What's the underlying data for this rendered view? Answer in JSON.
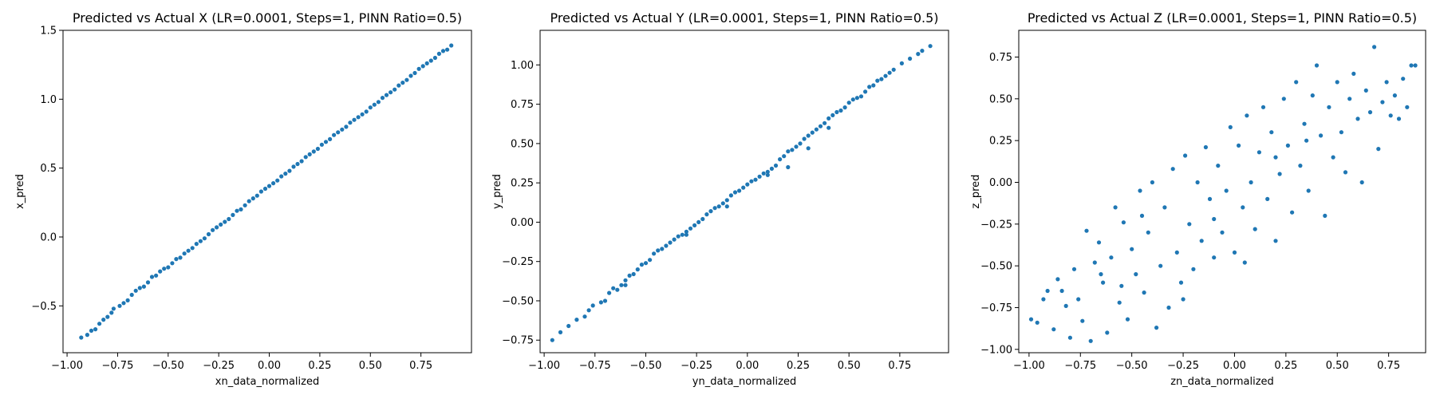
{
  "colors": {
    "points": "#1f77b4",
    "axes": "#000000",
    "background": "#ffffff"
  },
  "chart_data": [
    {
      "type": "scatter",
      "title": "Predicted vs Actual X (LR=0.0001, Steps=1, PINN Ratio=0.5)",
      "xlabel": "xn_data_normalized",
      "ylabel": "x_pred",
      "xlim": [
        -1.02,
        1.0
      ],
      "ylim": [
        -0.84,
        1.5
      ],
      "xticks": [
        -1.0,
        -0.75,
        -0.5,
        -0.25,
        0.0,
        0.25,
        0.5,
        0.75
      ],
      "xtick_labels": [
        "−1.00",
        "−0.75",
        "−0.50",
        "−0.25",
        "0.00",
        "0.25",
        "0.50",
        "0.75"
      ],
      "yticks": [
        -0.5,
        0.0,
        0.5,
        1.0,
        1.5
      ],
      "ytick_labels": [
        "−0.5",
        "0.0",
        "0.5",
        "1.0",
        "1.5"
      ],
      "points": [
        [
          -0.93,
          -0.73
        ],
        [
          -0.9,
          -0.71
        ],
        [
          -0.88,
          -0.68
        ],
        [
          -0.86,
          -0.67
        ],
        [
          -0.84,
          -0.63
        ],
        [
          -0.82,
          -0.6
        ],
        [
          -0.8,
          -0.58
        ],
        [
          -0.78,
          -0.55
        ],
        [
          -0.77,
          -0.52
        ],
        [
          -0.74,
          -0.5
        ],
        [
          -0.72,
          -0.48
        ],
        [
          -0.7,
          -0.46
        ],
        [
          -0.68,
          -0.42
        ],
        [
          -0.66,
          -0.39
        ],
        [
          -0.64,
          -0.37
        ],
        [
          -0.62,
          -0.36
        ],
        [
          -0.6,
          -0.33
        ],
        [
          -0.58,
          -0.29
        ],
        [
          -0.56,
          -0.28
        ],
        [
          -0.54,
          -0.25
        ],
        [
          -0.52,
          -0.23
        ],
        [
          -0.5,
          -0.22
        ],
        [
          -0.48,
          -0.19
        ],
        [
          -0.46,
          -0.16
        ],
        [
          -0.44,
          -0.15
        ],
        [
          -0.42,
          -0.12
        ],
        [
          -0.4,
          -0.1
        ],
        [
          -0.38,
          -0.08
        ],
        [
          -0.36,
          -0.05
        ],
        [
          -0.34,
          -0.03
        ],
        [
          -0.32,
          -0.01
        ],
        [
          -0.3,
          0.02
        ],
        [
          -0.28,
          0.05
        ],
        [
          -0.26,
          0.07
        ],
        [
          -0.24,
          0.09
        ],
        [
          -0.22,
          0.11
        ],
        [
          -0.2,
          0.13
        ],
        [
          -0.18,
          0.16
        ],
        [
          -0.16,
          0.19
        ],
        [
          -0.14,
          0.2
        ],
        [
          -0.12,
          0.23
        ],
        [
          -0.1,
          0.26
        ],
        [
          -0.08,
          0.28
        ],
        [
          -0.06,
          0.3
        ],
        [
          -0.04,
          0.33
        ],
        [
          -0.02,
          0.35
        ],
        [
          0.0,
          0.37
        ],
        [
          0.02,
          0.39
        ],
        [
          0.04,
          0.41
        ],
        [
          0.06,
          0.44
        ],
        [
          0.08,
          0.46
        ],
        [
          0.1,
          0.48
        ],
        [
          0.12,
          0.51
        ],
        [
          0.14,
          0.53
        ],
        [
          0.16,
          0.55
        ],
        [
          0.18,
          0.58
        ],
        [
          0.2,
          0.6
        ],
        [
          0.22,
          0.62
        ],
        [
          0.24,
          0.64
        ],
        [
          0.26,
          0.67
        ],
        [
          0.28,
          0.69
        ],
        [
          0.3,
          0.71
        ],
        [
          0.32,
          0.74
        ],
        [
          0.34,
          0.76
        ],
        [
          0.36,
          0.78
        ],
        [
          0.38,
          0.8
        ],
        [
          0.4,
          0.83
        ],
        [
          0.42,
          0.85
        ],
        [
          0.44,
          0.87
        ],
        [
          0.46,
          0.89
        ],
        [
          0.48,
          0.91
        ],
        [
          0.5,
          0.94
        ],
        [
          0.52,
          0.96
        ],
        [
          0.54,
          0.98
        ],
        [
          0.56,
          1.01
        ],
        [
          0.58,
          1.03
        ],
        [
          0.6,
          1.05
        ],
        [
          0.62,
          1.07
        ],
        [
          0.64,
          1.1
        ],
        [
          0.66,
          1.12
        ],
        [
          0.68,
          1.14
        ],
        [
          0.7,
          1.17
        ],
        [
          0.72,
          1.19
        ],
        [
          0.74,
          1.22
        ],
        [
          0.76,
          1.24
        ],
        [
          0.78,
          1.26
        ],
        [
          0.8,
          1.28
        ],
        [
          0.82,
          1.3
        ],
        [
          0.84,
          1.33
        ],
        [
          0.86,
          1.35
        ],
        [
          0.88,
          1.36
        ],
        [
          0.9,
          1.39
        ]
      ]
    },
    {
      "type": "scatter",
      "title": "Predicted vs Actual Y (LR=0.0001, Steps=1, PINN Ratio=0.5)",
      "xlabel": "yn_data_normalized",
      "ylabel": "y_pred",
      "xlim": [
        -1.02,
        0.99
      ],
      "ylim": [
        -0.83,
        1.22
      ],
      "xticks": [
        -1.0,
        -0.75,
        -0.5,
        -0.25,
        0.0,
        0.25,
        0.5,
        0.75
      ],
      "xtick_labels": [
        "−1.00",
        "−0.75",
        "−0.50",
        "−0.25",
        "0.00",
        "0.25",
        "0.50",
        "0.75"
      ],
      "yticks": [
        -0.75,
        -0.5,
        -0.25,
        0.0,
        0.25,
        0.5,
        0.75,
        1.0
      ],
      "ytick_labels": [
        "−0.75",
        "−0.50",
        "−0.25",
        "0.00",
        "0.25",
        "0.50",
        "0.75",
        "1.00"
      ],
      "points": [
        [
          -0.96,
          -0.75
        ],
        [
          -0.92,
          -0.7
        ],
        [
          -0.88,
          -0.66
        ],
        [
          -0.84,
          -0.62
        ],
        [
          -0.8,
          -0.6
        ],
        [
          -0.78,
          -0.56
        ],
        [
          -0.76,
          -0.53
        ],
        [
          -0.72,
          -0.51
        ],
        [
          -0.7,
          -0.5
        ],
        [
          -0.68,
          -0.45
        ],
        [
          -0.66,
          -0.42
        ],
        [
          -0.64,
          -0.43
        ],
        [
          -0.62,
          -0.4
        ],
        [
          -0.6,
          -0.37
        ],
        [
          -0.58,
          -0.34
        ],
        [
          -0.56,
          -0.33
        ],
        [
          -0.54,
          -0.3
        ],
        [
          -0.52,
          -0.27
        ],
        [
          -0.5,
          -0.26
        ],
        [
          -0.48,
          -0.24
        ],
        [
          -0.46,
          -0.2
        ],
        [
          -0.44,
          -0.18
        ],
        [
          -0.42,
          -0.17
        ],
        [
          -0.4,
          -0.15
        ],
        [
          -0.38,
          -0.13
        ],
        [
          -0.36,
          -0.11
        ],
        [
          -0.34,
          -0.09
        ],
        [
          -0.32,
          -0.08
        ],
        [
          -0.3,
          -0.06
        ],
        [
          -0.28,
          -0.04
        ],
        [
          -0.26,
          -0.02
        ],
        [
          -0.24,
          0.0
        ],
        [
          -0.22,
          0.02
        ],
        [
          -0.2,
          0.05
        ],
        [
          -0.18,
          0.07
        ],
        [
          -0.16,
          0.09
        ],
        [
          -0.14,
          0.1
        ],
        [
          -0.12,
          0.12
        ],
        [
          -0.1,
          0.14
        ],
        [
          -0.08,
          0.17
        ],
        [
          -0.06,
          0.19
        ],
        [
          -0.04,
          0.2
        ],
        [
          -0.02,
          0.22
        ],
        [
          0.0,
          0.24
        ],
        [
          0.02,
          0.26
        ],
        [
          0.04,
          0.27
        ],
        [
          0.06,
          0.29
        ],
        [
          0.08,
          0.31
        ],
        [
          0.1,
          0.32
        ],
        [
          0.12,
          0.34
        ],
        [
          0.14,
          0.36
        ],
        [
          0.16,
          0.4
        ],
        [
          0.18,
          0.42
        ],
        [
          0.2,
          0.45
        ],
        [
          0.22,
          0.46
        ],
        [
          0.24,
          0.48
        ],
        [
          0.26,
          0.5
        ],
        [
          0.28,
          0.53
        ],
        [
          0.3,
          0.55
        ],
        [
          0.32,
          0.57
        ],
        [
          0.34,
          0.59
        ],
        [
          0.36,
          0.61
        ],
        [
          0.38,
          0.63
        ],
        [
          0.4,
          0.66
        ],
        [
          0.42,
          0.68
        ],
        [
          0.44,
          0.7
        ],
        [
          0.46,
          0.71
        ],
        [
          0.48,
          0.73
        ],
        [
          0.5,
          0.76
        ],
        [
          0.52,
          0.78
        ],
        [
          0.54,
          0.79
        ],
        [
          0.56,
          0.8
        ],
        [
          0.58,
          0.83
        ],
        [
          0.6,
          0.86
        ],
        [
          0.62,
          0.87
        ],
        [
          0.64,
          0.9
        ],
        [
          0.66,
          0.91
        ],
        [
          0.68,
          0.93
        ],
        [
          0.7,
          0.95
        ],
        [
          0.72,
          0.97
        ],
        [
          0.76,
          1.01
        ],
        [
          0.8,
          1.04
        ],
        [
          0.84,
          1.07
        ],
        [
          0.86,
          1.09
        ],
        [
          0.9,
          1.12
        ],
        [
          0.1,
          0.3
        ],
        [
          -0.3,
          -0.08
        ],
        [
          0.2,
          0.35
        ],
        [
          0.4,
          0.6
        ],
        [
          -0.6,
          -0.4
        ],
        [
          0.3,
          0.47
        ],
        [
          -0.1,
          0.1
        ]
      ]
    },
    {
      "type": "scatter",
      "title": "Predicted vs Actual Z (LR=0.0001, Steps=1, PINN Ratio=0.5)",
      "xlabel": "zn_data_normalized",
      "ylabel": "z_pred",
      "xlim": [
        -1.05,
        0.93
      ],
      "ylim": [
        -1.02,
        0.91
      ],
      "xticks": [
        -1.0,
        -0.75,
        -0.5,
        -0.25,
        0.0,
        0.25,
        0.5,
        0.75
      ],
      "xtick_labels": [
        "−1.00",
        "−0.75",
        "−0.50",
        "−0.25",
        "0.00",
        "0.25",
        "0.50",
        "0.75"
      ],
      "yticks": [
        -1.0,
        -0.75,
        -0.5,
        -0.25,
        0.0,
        0.25,
        0.5,
        0.75
      ],
      "ytick_labels": [
        "−1.00",
        "−0.75",
        "−0.50",
        "−0.25",
        "0.00",
        "0.25",
        "0.50",
        "0.75"
      ],
      "points": [
        [
          -0.99,
          -0.82
        ],
        [
          -0.96,
          -0.84
        ],
        [
          -0.93,
          -0.7
        ],
        [
          -0.91,
          -0.65
        ],
        [
          -0.88,
          -0.88
        ],
        [
          -0.86,
          -0.58
        ],
        [
          -0.84,
          -0.65
        ],
        [
          -0.82,
          -0.74
        ],
        [
          -0.8,
          -0.93
        ],
        [
          -0.78,
          -0.52
        ],
        [
          -0.76,
          -0.7
        ],
        [
          -0.74,
          -0.83
        ],
        [
          -0.72,
          -0.29
        ],
        [
          -0.7,
          -0.95
        ],
        [
          -0.68,
          -0.48
        ],
        [
          -0.66,
          -0.36
        ],
        [
          -0.64,
          -0.6
        ],
        [
          -0.62,
          -0.9
        ],
        [
          -0.6,
          -0.45
        ],
        [
          -0.58,
          -0.15
        ],
        [
          -0.56,
          -0.72
        ],
        [
          -0.54,
          -0.24
        ],
        [
          -0.52,
          -0.82
        ],
        [
          -0.5,
          -0.4
        ],
        [
          -0.48,
          -0.55
        ],
        [
          -0.46,
          -0.05
        ],
        [
          -0.44,
          -0.66
        ],
        [
          -0.42,
          -0.3
        ],
        [
          -0.4,
          0.0
        ],
        [
          -0.38,
          -0.87
        ],
        [
          -0.36,
          -0.5
        ],
        [
          -0.34,
          -0.15
        ],
        [
          -0.32,
          -0.75
        ],
        [
          -0.3,
          0.08
        ],
        [
          -0.28,
          -0.42
        ],
        [
          -0.26,
          -0.6
        ],
        [
          -0.24,
          0.16
        ],
        [
          -0.22,
          -0.25
        ],
        [
          -0.2,
          -0.52
        ],
        [
          -0.18,
          0.0
        ],
        [
          -0.16,
          -0.35
        ],
        [
          -0.14,
          0.21
        ],
        [
          -0.12,
          -0.1
        ],
        [
          -0.1,
          -0.45
        ],
        [
          -0.08,
          0.1
        ],
        [
          -0.06,
          -0.3
        ],
        [
          -0.04,
          -0.05
        ],
        [
          -0.02,
          0.33
        ],
        [
          0.0,
          -0.42
        ],
        [
          0.02,
          0.22
        ],
        [
          0.04,
          -0.15
        ],
        [
          0.06,
          0.4
        ],
        [
          0.08,
          0.0
        ],
        [
          0.1,
          -0.28
        ],
        [
          0.12,
          0.18
        ],
        [
          0.14,
          0.45
        ],
        [
          0.16,
          -0.1
        ],
        [
          0.18,
          0.3
        ],
        [
          0.2,
          -0.35
        ],
        [
          0.22,
          0.05
        ],
        [
          0.24,
          0.5
        ],
        [
          0.26,
          0.22
        ],
        [
          0.28,
          -0.18
        ],
        [
          0.3,
          0.6
        ],
        [
          0.32,
          0.1
        ],
        [
          0.34,
          0.35
        ],
        [
          0.36,
          -0.05
        ],
        [
          0.38,
          0.52
        ],
        [
          0.4,
          0.7
        ],
        [
          0.42,
          0.28
        ],
        [
          0.44,
          -0.2
        ],
        [
          0.46,
          0.45
        ],
        [
          0.48,
          0.15
        ],
        [
          0.5,
          0.6
        ],
        [
          0.52,
          0.3
        ],
        [
          0.54,
          0.06
        ],
        [
          0.56,
          0.5
        ],
        [
          0.58,
          0.65
        ],
        [
          0.6,
          0.38
        ],
        [
          0.62,
          0.0
        ],
        [
          0.64,
          0.55
        ],
        [
          0.66,
          0.42
        ],
        [
          0.68,
          0.81
        ],
        [
          0.7,
          0.2
        ],
        [
          0.72,
          0.48
        ],
        [
          0.74,
          0.6
        ],
        [
          0.76,
          0.4
        ],
        [
          0.78,
          0.52
        ],
        [
          0.8,
          0.38
        ],
        [
          0.82,
          0.62
        ],
        [
          0.84,
          0.45
        ],
        [
          0.86,
          0.7
        ],
        [
          0.88,
          0.7
        ],
        [
          -0.55,
          -0.62
        ],
        [
          -0.25,
          -0.7
        ],
        [
          -0.1,
          -0.22
        ],
        [
          0.05,
          -0.48
        ],
        [
          0.2,
          0.15
        ],
        [
          -0.45,
          -0.2
        ],
        [
          0.35,
          0.25
        ],
        [
          -0.65,
          -0.55
        ]
      ]
    }
  ]
}
